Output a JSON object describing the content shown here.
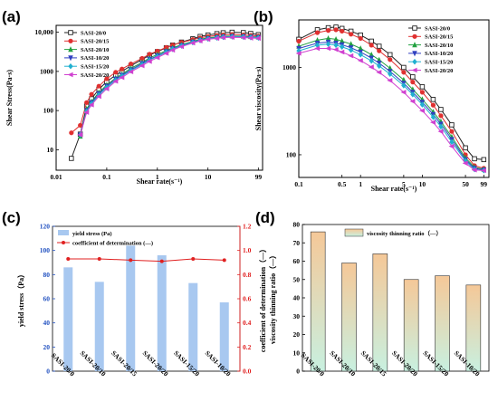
{
  "chart_data": [
    {
      "panel": "(a)",
      "type": "line",
      "xscale": "log",
      "yscale": "log",
      "xlabel": "Shear rate(s⁻¹)",
      "ylabel": "Shear Stress(Pa·s)",
      "xlim": [
        0.01,
        120
      ],
      "ylim": [
        3,
        15000
      ],
      "xticks": [
        "0.01",
        "0.1",
        "1",
        "10",
        "99"
      ],
      "yticks": [
        "10",
        "100",
        "1000",
        "10,000"
      ],
      "legend": "top-left",
      "series": [
        {
          "name": "SASI-20/0",
          "color": "#222222",
          "marker": "square",
          "x": [
            0.02,
            0.03,
            0.04,
            0.05,
            0.07,
            0.1,
            0.15,
            0.2,
            0.3,
            0.5,
            0.7,
            1,
            1.5,
            2,
            3,
            5,
            7,
            10,
            15,
            20,
            30,
            50,
            70,
            99
          ],
          "y": [
            6,
            25,
            130,
            200,
            350,
            550,
            800,
            1000,
            1400,
            2000,
            2600,
            3200,
            4000,
            4700,
            5600,
            6800,
            7800,
            8500,
            9200,
            9700,
            10000,
            9800,
            9300,
            8700
          ]
        },
        {
          "name": "SASI-20/15",
          "color": "#e03030",
          "marker": "circle",
          "x": [
            0.02,
            0.03,
            0.04,
            0.05,
            0.07,
            0.1,
            0.15,
            0.2,
            0.3,
            0.5,
            0.7,
            1,
            1.5,
            2,
            3,
            5,
            7,
            10,
            15,
            20,
            30,
            50,
            70,
            99
          ],
          "y": [
            27,
            42,
            160,
            260,
            420,
            650,
            950,
            1150,
            1550,
            2150,
            2750,
            3300,
            4100,
            4700,
            5500,
            6500,
            7200,
            7800,
            8300,
            8600,
            8800,
            8600,
            8300,
            8000
          ]
        },
        {
          "name": "SASI-20/10",
          "color": "#22a040",
          "marker": "triangle",
          "x": [
            0.03,
            0.04,
            0.05,
            0.07,
            0.1,
            0.15,
            0.2,
            0.3,
            0.5,
            0.7,
            1,
            1.5,
            2,
            3,
            5,
            7,
            10,
            15,
            20,
            30,
            50,
            70,
            99
          ],
          "y": [
            22,
            110,
            170,
            290,
            450,
            680,
            850,
            1200,
            1700,
            2200,
            2700,
            3400,
            4000,
            4800,
            5800,
            6600,
            7200,
            7600,
            7900,
            8000,
            7900,
            7700,
            7500
          ]
        },
        {
          "name": "SASI-10/20",
          "color": "#3040c0",
          "marker": "triangle-down",
          "x": [
            0.03,
            0.04,
            0.05,
            0.07,
            0.1,
            0.15,
            0.2,
            0.3,
            0.5,
            0.7,
            1,
            1.5,
            2,
            3,
            5,
            7,
            10,
            15,
            20,
            30,
            50,
            70,
            99
          ],
          "y": [
            24,
            100,
            160,
            270,
            420,
            640,
            800,
            1100,
            1600,
            2050,
            2500,
            3200,
            3800,
            4600,
            5600,
            6300,
            6900,
            7300,
            7600,
            7800,
            7700,
            7500,
            7300
          ]
        },
        {
          "name": "SASI-15/20",
          "color": "#20b0d0",
          "marker": "diamond",
          "x": [
            0.03,
            0.04,
            0.05,
            0.07,
            0.1,
            0.15,
            0.2,
            0.3,
            0.5,
            0.7,
            1,
            1.5,
            2,
            3,
            5,
            7,
            10,
            15,
            20,
            30,
            50,
            70,
            99
          ],
          "y": [
            24,
            95,
            150,
            250,
            390,
            600,
            760,
            1050,
            1500,
            1950,
            2400,
            3100,
            3700,
            4500,
            5500,
            6200,
            6800,
            7200,
            7500,
            7700,
            7600,
            7400,
            7200
          ]
        },
        {
          "name": "SASI-20/20",
          "color": "#d040d0",
          "marker": "triangle-left",
          "x": [
            0.03,
            0.04,
            0.05,
            0.07,
            0.1,
            0.15,
            0.2,
            0.3,
            0.5,
            0.7,
            1,
            1.5,
            2,
            3,
            5,
            7,
            10,
            15,
            20,
            30,
            50,
            70,
            99
          ],
          "y": [
            24,
            90,
            140,
            230,
            360,
            560,
            700,
            980,
            1400,
            1800,
            2250,
            2900,
            3500,
            4300,
            5300,
            6000,
            6600,
            7000,
            7300,
            7400,
            7300,
            7100,
            7000
          ]
        }
      ]
    },
    {
      "panel": "(b)",
      "type": "line",
      "xscale": "log",
      "yscale": "log",
      "xlabel": "Shear rate(s⁻¹)",
      "ylabel": "Shear viscosity(Pa·s)",
      "xlim": [
        0.1,
        120
      ],
      "ylim": [
        55,
        3500
      ],
      "xticks": [
        "0.1",
        "0.5",
        "1",
        "5",
        "10",
        "50",
        "99"
      ],
      "yticks": [
        "100",
        "1000"
      ],
      "legend": "top-right",
      "series": [
        {
          "name": "SASI-20/0",
          "color": "#222222",
          "marker": "square",
          "x": [
            0.1,
            0.2,
            0.3,
            0.4,
            0.5,
            0.7,
            1,
            1.5,
            2,
            3,
            5,
            7,
            10,
            15,
            20,
            30,
            50,
            70,
            99
          ],
          "y": [
            2100,
            2700,
            2850,
            2900,
            2800,
            2600,
            2350,
            2000,
            1750,
            1400,
            1000,
            780,
            600,
            430,
            330,
            220,
            120,
            90,
            88
          ]
        },
        {
          "name": "SASI-20/15",
          "color": "#e03030",
          "marker": "circle",
          "x": [
            0.1,
            0.2,
            0.3,
            0.4,
            0.5,
            0.7,
            1,
            1.5,
            2,
            3,
            5,
            7,
            10,
            15,
            20,
            30,
            50,
            70,
            99
          ],
          "y": [
            2000,
            2500,
            2650,
            2700,
            2600,
            2400,
            2150,
            1800,
            1550,
            1230,
            880,
            680,
            520,
            370,
            280,
            185,
            100,
            75,
            70
          ]
        },
        {
          "name": "SASI-20/10",
          "color": "#22a040",
          "marker": "triangle",
          "x": [
            0.1,
            0.2,
            0.3,
            0.4,
            0.5,
            0.7,
            1,
            1.5,
            2,
            3,
            5,
            7,
            10,
            15,
            20,
            30,
            50,
            70,
            99
          ],
          "y": [
            1750,
            2050,
            2150,
            2100,
            2000,
            1850,
            1650,
            1400,
            1220,
            980,
            720,
            560,
            430,
            310,
            240,
            160,
            92,
            72,
            68
          ]
        },
        {
          "name": "SASI-10/20",
          "color": "#3040c0",
          "marker": "triangle-down",
          "x": [
            0.1,
            0.2,
            0.3,
            0.4,
            0.5,
            0.7,
            1,
            1.5,
            2,
            3,
            5,
            7,
            10,
            15,
            20,
            30,
            50,
            70,
            99
          ],
          "y": [
            1650,
            1900,
            1950,
            1900,
            1820,
            1680,
            1500,
            1280,
            1120,
            900,
            660,
            520,
            400,
            290,
            225,
            150,
            88,
            70,
            67
          ]
        },
        {
          "name": "SASI-15/20",
          "color": "#20b0d0",
          "marker": "diamond",
          "x": [
            0.1,
            0.2,
            0.3,
            0.4,
            0.5,
            0.7,
            1,
            1.5,
            2,
            3,
            5,
            7,
            10,
            15,
            20,
            30,
            50,
            70,
            99
          ],
          "y": [
            1550,
            1800,
            1850,
            1800,
            1720,
            1580,
            1400,
            1190,
            1040,
            840,
            620,
            490,
            375,
            270,
            210,
            140,
            85,
            68,
            66
          ]
        },
        {
          "name": "SASI-20/20",
          "color": "#d040d0",
          "marker": "triangle-left",
          "x": [
            0.1,
            0.2,
            0.3,
            0.4,
            0.5,
            0.7,
            1,
            1.5,
            2,
            3,
            5,
            7,
            10,
            15,
            20,
            30,
            50,
            70,
            99
          ],
          "y": [
            1450,
            1650,
            1650,
            1600,
            1500,
            1360,
            1200,
            1010,
            880,
            710,
            520,
            410,
            320,
            235,
            185,
            125,
            80,
            67,
            66
          ]
        }
      ]
    },
    {
      "panel": "(c)",
      "type": "bar",
      "categories": [
        "SASI-20/0",
        "SASI-20/10",
        "SASI-20/15",
        "SASI-20/20",
        "SASI-15/20",
        "SASI-10/20"
      ],
      "ylabel": "yield stress（Pa）",
      "y2label": "coefficient of determination（—）",
      "ylim": [
        0,
        120
      ],
      "y2lim": [
        0.0,
        1.2
      ],
      "yticks": [
        "0",
        "20",
        "40",
        "60",
        "80",
        "100",
        "120"
      ],
      "y2ticks": [
        "0.0",
        "0.2",
        "0.4",
        "0.6",
        "0.8",
        "1.0",
        "1.2"
      ],
      "legend": "top-left",
      "series": [
        {
          "name": "yield stress (Pa)",
          "type": "bar",
          "axis": "left",
          "color": "#a8c8f0",
          "values": [
            86,
            74,
            104,
            96,
            73,
            57
          ]
        },
        {
          "name": "coefficient of determination (—)",
          "type": "line",
          "axis": "right",
          "color": "#e02020",
          "values": [
            0.93,
            0.93,
            0.92,
            0.91,
            0.93,
            0.92
          ]
        }
      ]
    },
    {
      "panel": "(d)",
      "type": "bar",
      "categories": [
        "SASI-20/0",
        "SASI-20/10",
        "SASI-20/15",
        "SASI-20/20",
        "SASI-15/20",
        "SASI-10/20"
      ],
      "ylabel": "viscosity thinning ratio（—）",
      "ylim": [
        0,
        80
      ],
      "yticks": [
        "0",
        "10",
        "20",
        "30",
        "40",
        "50",
        "60",
        "70",
        "80"
      ],
      "legend": "top-right",
      "series": [
        {
          "name": "viscosity thinning ratio（—）",
          "gradient": [
            "#f5c898",
            "#c8f0e0"
          ],
          "values": [
            76,
            59,
            64,
            50,
            52,
            47
          ]
        }
      ]
    }
  ],
  "panels": {
    "a": "(a)",
    "b": "(b)",
    "c": "(c)",
    "d": "(d)"
  }
}
